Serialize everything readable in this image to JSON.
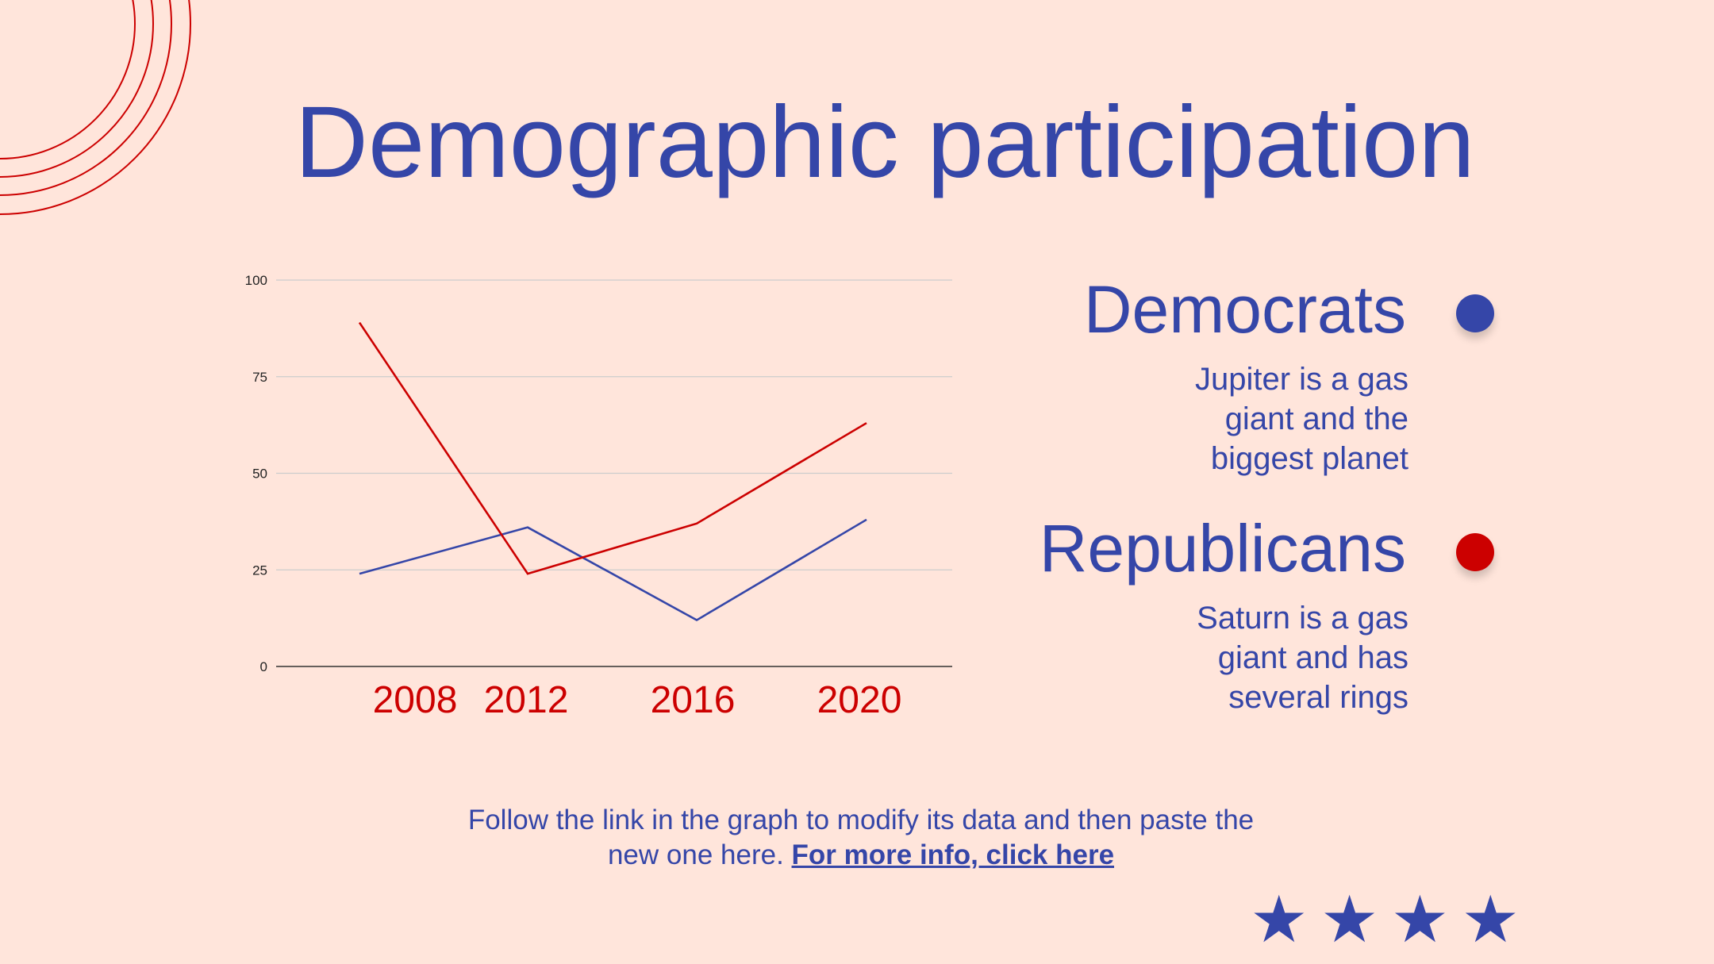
{
  "title": "Demographic participation",
  "colors": {
    "background": "#FFE5DB",
    "blue": "#3546A8",
    "red": "#CC0000",
    "grid": "#CCCCCC"
  },
  "chart_data": {
    "type": "line",
    "categories": [
      "2008",
      "2012",
      "2016",
      "2020"
    ],
    "series": [
      {
        "name": "Democrats",
        "color": "#3546A8",
        "values": [
          24,
          36,
          12,
          38
        ]
      },
      {
        "name": "Republicans",
        "color": "#CC0000",
        "values": [
          89,
          24,
          37,
          63
        ]
      }
    ],
    "ylim": [
      0,
      100
    ],
    "yticks": [
      "0",
      "25",
      "50",
      "75",
      "100"
    ],
    "grid": true,
    "title": "",
    "xlabel": "",
    "ylabel": ""
  },
  "legend": {
    "democrats": {
      "name": "Democrats",
      "description": "Jupiter is a gas giant and the biggest planet",
      "icon": "blue-dot-icon"
    },
    "republicans": {
      "name": "Republicans",
      "description": "Saturn is a gas giant and has several rings",
      "icon": "red-dot-icon"
    }
  },
  "footer": {
    "text": "Follow the link in the graph to modify its data and then paste the new one here.",
    "link": "For more info, click here"
  },
  "decorations": {
    "star_icon": "star-icon",
    "star_glyph": "★",
    "circles_icon": "concentric-circles-icon"
  }
}
